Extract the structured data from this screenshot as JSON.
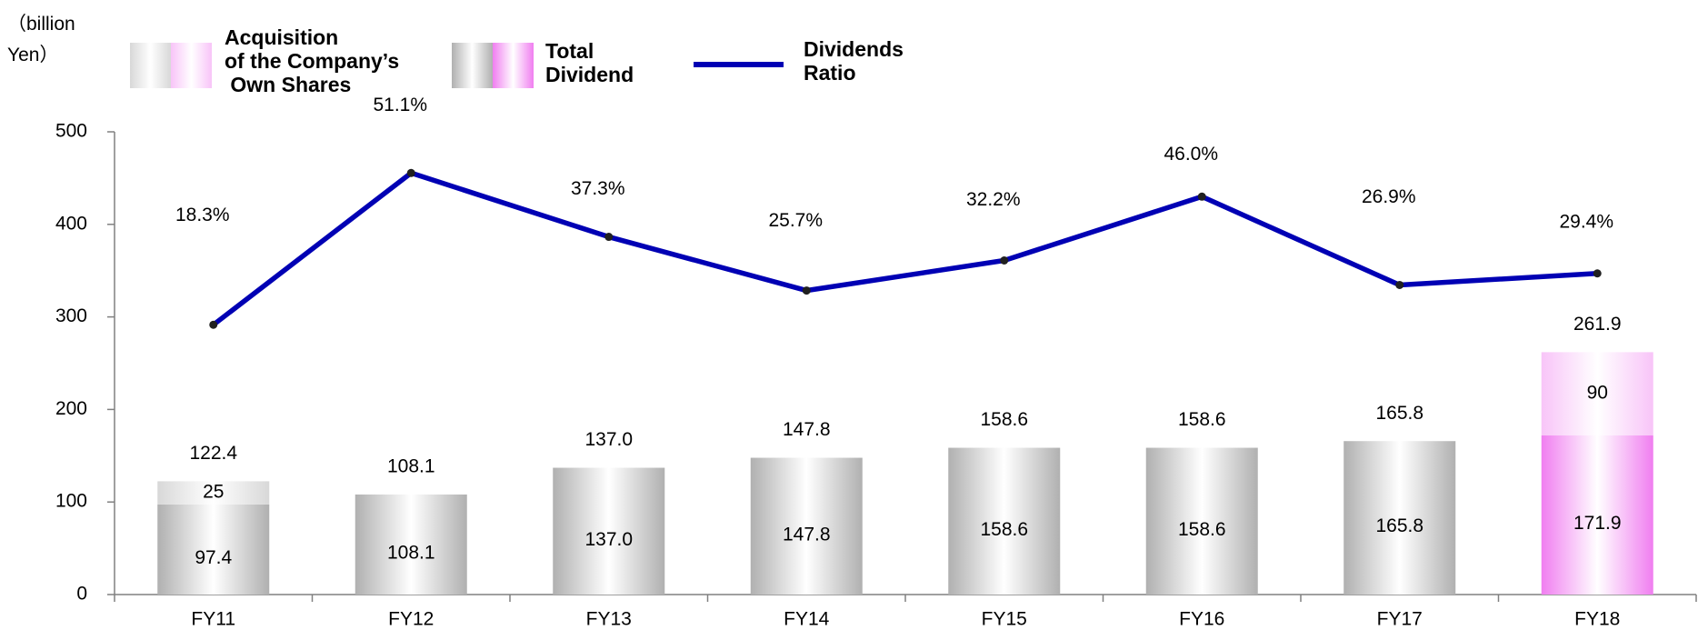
{
  "chart_data": {
    "type": "bar",
    "stacked": true,
    "y_label": "（billion\nYen）",
    "categories": [
      "FY11",
      "FY12",
      "FY13",
      "FY14",
      "FY15",
      "FY16",
      "FY17",
      "FY18"
    ],
    "series": [
      {
        "name": "Total\nDividend",
        "colors": [
          "#b0b0b0",
          "#b0b0b0",
          "#b0b0b0",
          "#b0b0b0",
          "#b0b0b0",
          "#b0b0b0",
          "#b0b0b0",
          "#f07ef0"
        ],
        "values": [
          97.4,
          108.1,
          137.0,
          147.8,
          158.6,
          158.6,
          165.8,
          171.9
        ],
        "value_labels": [
          "97.4",
          "108.1",
          "137.0",
          "147.8",
          "158.6",
          "158.6",
          "165.8",
          "171.9"
        ]
      },
      {
        "name": "Acquisition\nof the Company’s\n Own Shares",
        "colors": [
          "#d8d8d8",
          "#d8d8d8",
          "#d8d8d8",
          "#d8d8d8",
          "#d8d8d8",
          "#d8d8d8",
          "#d8d8d8",
          "#f8c4f8"
        ],
        "values": [
          25,
          null,
          null,
          null,
          null,
          null,
          null,
          90
        ]
      },
      {
        "name": "Dividends\nRatio",
        "type": "line",
        "axis": "y2",
        "color": "#0000b4",
        "values": [
          18.3,
          51.1,
          37.3,
          25.7,
          32.2,
          46.0,
          26.9,
          29.4
        ],
        "value_labels": [
          "18.3%",
          "51.1%",
          "37.3%",
          "25.7%",
          "32.2%",
          "46.0%",
          "26.9%",
          "29.4%"
        ]
      }
    ],
    "totals": {
      "values": [
        122.4,
        108.1,
        137.0,
        147.8,
        158.6,
        158.6,
        165.8,
        261.9
      ],
      "value_labels": [
        "122.4",
        "108.1",
        "137.0",
        "147.8",
        "158.6",
        "158.6",
        "165.8",
        "261.9"
      ]
    },
    "ylim": [
      0,
      500
    ],
    "yticks": [
      0,
      100,
      200,
      300,
      400,
      500
    ],
    "y2lim": [
      -40,
      60
    ]
  }
}
